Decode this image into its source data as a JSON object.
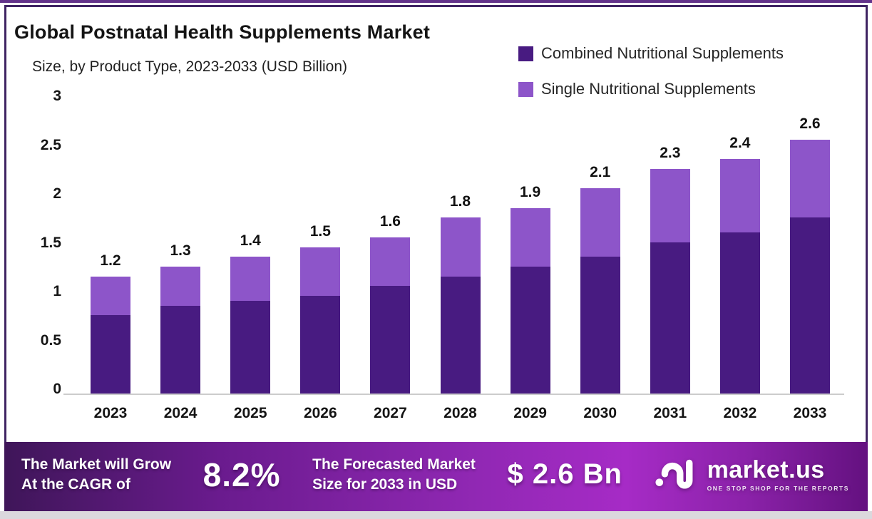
{
  "header": {
    "title": "Global Postnatal Health Supplements Market",
    "subtitle": "Size, by Product Type, 2023-2033 (USD Billion)"
  },
  "legend": [
    {
      "label": "Combined Nutritional Supplements",
      "color": "#481b81"
    },
    {
      "label": "Single Nutritional Supplements",
      "color": "#8d55c9"
    }
  ],
  "chart_data": {
    "type": "bar",
    "stacked": true,
    "title": "Global Postnatal Health Supplements Market",
    "subtitle": "Size, by Product Type, 2023-2033 (USD Billion)",
    "unit": "USD Billion",
    "categories": [
      "2023",
      "2024",
      "2025",
      "2026",
      "2027",
      "2028",
      "2029",
      "2030",
      "2031",
      "2032",
      "2033"
    ],
    "series": [
      {
        "name": "Combined Nutritional Supplements",
        "color": "#481b81",
        "values": [
          0.8,
          0.9,
          0.95,
          1.0,
          1.1,
          1.2,
          1.3,
          1.4,
          1.55,
          1.65,
          1.8
        ]
      },
      {
        "name": "Single Nutritional Supplements",
        "color": "#8d55c9",
        "values": [
          0.4,
          0.4,
          0.45,
          0.5,
          0.5,
          0.6,
          0.6,
          0.7,
          0.75,
          0.75,
          0.8
        ]
      }
    ],
    "totals": [
      1.2,
      1.3,
      1.4,
      1.5,
      1.6,
      1.8,
      1.9,
      2.1,
      2.3,
      2.4,
      2.6
    ],
    "total_labels": [
      "1.2",
      "1.3",
      "1.4",
      "1.5",
      "1.6",
      "1.8",
      "1.9",
      "2.1",
      "2.3",
      "2.4",
      "2.6"
    ],
    "y_ticks": [
      0,
      0.5,
      1,
      1.5,
      2,
      2.5,
      3
    ],
    "y_tick_labels": [
      "0",
      "0.5",
      "1",
      "1.5",
      "2",
      "2.5",
      "3"
    ],
    "ylim": [
      0,
      3
    ],
    "grid": false,
    "legend_position": "top-right"
  },
  "banner": {
    "cagr_label_line1": "The Market will Grow",
    "cagr_label_line2": "At the CAGR of",
    "cagr_value": "8.2%",
    "forecast_label_line1": "The Forecasted Market",
    "forecast_label_line2": "Size for 2033 in USD",
    "forecast_value": "$ 2.6 Bn",
    "logo_text": "market.us",
    "logo_tagline": "ONE STOP SHOP FOR THE REPORTS"
  },
  "colors": {
    "bar_dark": "#481b81",
    "bar_light": "#8d55c9",
    "frame_border": "#3f2463",
    "top_strip": "#63338b",
    "axis_line": "#cccccc",
    "banner_gradient": [
      "#3f1659",
      "#6a1b8e",
      "#9128b4",
      "#a62bc6",
      "#8b22a9",
      "#641180"
    ]
  }
}
